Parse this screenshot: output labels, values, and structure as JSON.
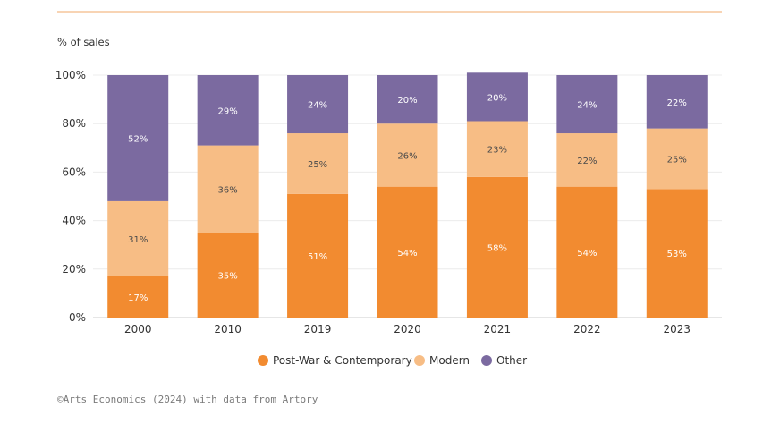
{
  "chart_data": {
    "type": "bar",
    "stacked": true,
    "percent_stacked": true,
    "ylabel": "% of sales",
    "categories": [
      "2000",
      "2010",
      "2019",
      "2020",
      "2021",
      "2022",
      "2023"
    ],
    "series": [
      {
        "name": "Post-War & Contemporary",
        "color": "#f28b30",
        "label_color": "#ffffff",
        "values": [
          17,
          35,
          51,
          54,
          58,
          54,
          53
        ],
        "labels": [
          "17%",
          "35%",
          "51%",
          "54%",
          "58%",
          "54%",
          "53%"
        ]
      },
      {
        "name": "Modern",
        "color": "#f7bd85",
        "label_color": "#4a4a4a",
        "values": [
          31,
          36,
          25,
          26,
          23,
          22,
          25
        ],
        "labels": [
          "31%",
          "36%",
          "25%",
          "26%",
          "23%",
          "22%",
          "25%"
        ]
      },
      {
        "name": "Other",
        "color": "#7b6aa0",
        "label_color": "#ffffff",
        "values": [
          52,
          29,
          24,
          20,
          20,
          24,
          22
        ],
        "labels": [
          "52%",
          "29%",
          "24%",
          "20%",
          "20%",
          "24%",
          "22%"
        ]
      }
    ],
    "yticks": [
      0,
      20,
      40,
      60,
      80,
      100
    ],
    "yticklabels": [
      "0%",
      "20%",
      "40%",
      "60%",
      "80%",
      "100%"
    ],
    "ylim": [
      0,
      100
    ],
    "grid": true,
    "legend": "bottom-center",
    "top_rule_color": "#f2a86a"
  },
  "source": "©Arts Economics (2024) with data from Artory"
}
